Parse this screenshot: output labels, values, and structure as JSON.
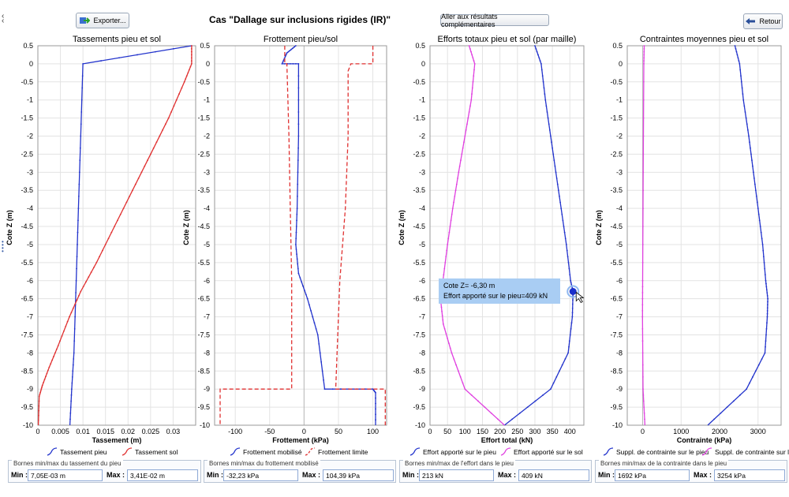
{
  "toolbar": {
    "export_label": "Exporter...",
    "title": "Cas \"Dallage sur inclusions rigides (IR)\"",
    "more_results_label": "Aller aux résultats complémentaires",
    "back_label": "Retour"
  },
  "tooltip": {
    "line1": "Cote Z= -6,30 m",
    "line2": "Effort apporté sur le pieu=409 kN"
  },
  "colors": {
    "blue": "#2233cc",
    "red": "#e03030",
    "magenta": "#e040e0",
    "grid": "#dcdcdc"
  },
  "chart_data": [
    {
      "type": "line",
      "title": "Tassements pieu et sol",
      "xlabel": "Tassement (m)",
      "ylabel": "Cote Z (m)",
      "xlim": [
        0,
        0.035
      ],
      "ylim": [
        -10,
        0.5
      ],
      "xticks": [
        0,
        0.005,
        0.01,
        0.015,
        0.02,
        0.025,
        0.03
      ],
      "xticklabels": [
        "0",
        "0.005",
        "0.01",
        "0.015",
        "0.02",
        "0.025",
        "0.03"
      ],
      "legend": [
        "Tassement pieu",
        "Tassement sol"
      ],
      "series": [
        {
          "name": "Tassement pieu",
          "color": "#2233cc",
          "dash": false,
          "points": [
            [
              0.0341,
              0.5
            ],
            [
              0.01,
              0
            ],
            [
              0.0095,
              -2
            ],
            [
              0.009,
              -4
            ],
            [
              0.0085,
              -6
            ],
            [
              0.008,
              -8
            ],
            [
              0.0075,
              -9
            ],
            [
              0.0071,
              -10
            ]
          ]
        },
        {
          "name": "Tassement sol",
          "color": "#e03030",
          "dash": false,
          "points": [
            [
              0.0341,
              0.5
            ],
            [
              0.0341,
              0
            ],
            [
              0.0325,
              -0.5
            ],
            [
              0.029,
              -1.5
            ],
            [
              0.025,
              -2.5
            ],
            [
              0.021,
              -3.5
            ],
            [
              0.017,
              -4.5
            ],
            [
              0.013,
              -5.5
            ],
            [
              0.0095,
              -6.3
            ],
            [
              0.007,
              -7
            ],
            [
              0.0045,
              -7.8
            ],
            [
              0.0025,
              -8.4
            ],
            [
              0.001,
              -8.9
            ],
            [
              0.0003,
              -9.2
            ],
            [
              0.0001,
              -10
            ]
          ]
        }
      ],
      "bounds": {
        "title": "Bornes min/max du tassement du pieu",
        "min_label": "Min :",
        "min": "7,05E-03 m",
        "max_label": "Max :",
        "max": "3,41E-02 m"
      }
    },
    {
      "type": "line",
      "title": "Frottement pieu/sol",
      "xlabel": "Frottement (kPa)",
      "ylabel": "Cote Z (m)",
      "xlim": [
        -130,
        120
      ],
      "ylim": [
        -10,
        0.5
      ],
      "xticks": [
        -100,
        -50,
        0,
        50,
        100
      ],
      "xticklabels": [
        "-100",
        "-50",
        "0",
        "50",
        "100"
      ],
      "legend": [
        "Frottement mobilisé",
        "Frottement limite"
      ],
      "series": [
        {
          "name": "Frottement mobilisé",
          "color": "#2233cc",
          "dash": false,
          "points": [
            [
              -12,
              0.5
            ],
            [
              -25,
              0.3
            ],
            [
              -32,
              0
            ],
            [
              -8,
              0
            ],
            [
              -8,
              -2
            ],
            [
              -10,
              -4
            ],
            [
              -12,
              -5
            ],
            [
              -8,
              -5.8
            ],
            [
              5,
              -6.5
            ],
            [
              20,
              -7.5
            ],
            [
              30,
              -9
            ],
            [
              100,
              -9
            ],
            [
              104,
              -9.1
            ],
            [
              104,
              -10
            ]
          ]
        },
        {
          "name": "Frottement limite",
          "color": "#e03030",
          "dash": true,
          "points": [
            [
              -28,
              0.5
            ],
            [
              -28,
              0
            ],
            [
              -25,
              0
            ],
            [
              -22,
              -2
            ],
            [
              -20,
              -4
            ],
            [
              -18,
              -6
            ],
            [
              -18,
              -9
            ],
            [
              -122,
              -9
            ],
            [
              -122,
              -10
            ]
          ]
        },
        {
          "name": "Frottement limite (+)",
          "color": "#e03030",
          "dash": true,
          "points": [
            [
              100,
              0.5
            ],
            [
              100,
              0
            ],
            [
              70,
              0
            ],
            [
              68,
              0
            ],
            [
              64,
              -0.2
            ],
            [
              64,
              -2
            ],
            [
              60,
              -4
            ],
            [
              52,
              -6
            ],
            [
              48,
              -8
            ],
            [
              46,
              -9
            ],
            [
              118,
              -9
            ],
            [
              118,
              -10
            ]
          ]
        }
      ],
      "bounds": {
        "title": "Bornes min/max du frottement mobilisé",
        "min_label": "Min :",
        "min": "-32,23 kPa",
        "max_label": "Max :",
        "max": "104,39 kPa"
      }
    },
    {
      "type": "line",
      "title": "Efforts totaux pieu et sol (par maille)",
      "xlabel": "Effort total (kN)",
      "ylabel": "Cote Z (m)",
      "xlim": [
        0,
        440
      ],
      "ylim": [
        -10,
        0.5
      ],
      "xticks": [
        0,
        50,
        100,
        150,
        200,
        250,
        300,
        350,
        400
      ],
      "xticklabels": [
        "0",
        "50",
        "100",
        "150",
        "200",
        "250",
        "300",
        "350",
        "400"
      ],
      "legend": [
        "Effort apporté sur le pieu",
        "Effort apporté sur le sol"
      ],
      "series": [
        {
          "name": "Effort apporté sur le pieu",
          "color": "#2233cc",
          "dash": false,
          "points": [
            [
              300,
              0.5
            ],
            [
              318,
              0
            ],
            [
              330,
              -1
            ],
            [
              345,
              -2
            ],
            [
              360,
              -3
            ],
            [
              375,
              -4
            ],
            [
              390,
              -5
            ],
            [
              402,
              -6
            ],
            [
              409,
              -6.3
            ],
            [
              407,
              -7
            ],
            [
              395,
              -8
            ],
            [
              345,
              -9
            ],
            [
              213,
              -10
            ]
          ]
        },
        {
          "name": "Effort apporté sur le sol",
          "color": "#e040e0",
          "dash": false,
          "points": [
            [
              112,
              0.5
            ],
            [
              128,
              0
            ],
            [
              118,
              -1
            ],
            [
              100,
              -2
            ],
            [
              82,
              -3
            ],
            [
              65,
              -4
            ],
            [
              50,
              -5
            ],
            [
              37,
              -6
            ],
            [
              30,
              -6.5
            ],
            [
              38,
              -7.2
            ],
            [
              62,
              -8
            ],
            [
              100,
              -9
            ],
            [
              213,
              -10
            ]
          ]
        }
      ],
      "bounds": {
        "title": "Bornes min/max de l'effort dans le pieu",
        "min_label": "Min :",
        "min": "213 kN",
        "max_label": "Max :",
        "max": "409 kN"
      }
    },
    {
      "type": "line",
      "title": "Contraintes moyennes pieu et sol",
      "xlabel": "Contrainte (kPa)",
      "ylabel": "Cote Z (m)",
      "xlim": [
        -400,
        3600
      ],
      "ylim": [
        -10,
        0.5
      ],
      "xticks": [
        0,
        1000,
        2000,
        3000
      ],
      "xticklabels": [
        "0",
        "1000",
        "2000",
        "3000"
      ],
      "legend": [
        "Suppl. de contrainte sur le pieu",
        "Suppl. de contrainte sur le sol"
      ],
      "series": [
        {
          "name": "Suppl. de contrainte sur le pieu",
          "color": "#2233cc",
          "dash": false,
          "points": [
            [
              2400,
              0.5
            ],
            [
              2520,
              0
            ],
            [
              2620,
              -1
            ],
            [
              2760,
              -2
            ],
            [
              2880,
              -3
            ],
            [
              3000,
              -4
            ],
            [
              3120,
              -5
            ],
            [
              3200,
              -6
            ],
            [
              3254,
              -6.5
            ],
            [
              3240,
              -7
            ],
            [
              3180,
              -8
            ],
            [
              2700,
              -9
            ],
            [
              1692,
              -10
            ]
          ]
        },
        {
          "name": "Suppl. de contrainte sur le sol",
          "color": "#e040e0",
          "dash": false,
          "points": [
            [
              40,
              0.5
            ],
            [
              30,
              0
            ],
            [
              15,
              -3
            ],
            [
              0,
              -6
            ],
            [
              -5,
              -7
            ],
            [
              10,
              -9
            ],
            [
              60,
              -10
            ]
          ]
        }
      ],
      "bounds": {
        "title": "Bornes min/max de la contrainte dans le pieu",
        "min_label": "Min :",
        "min": "1692 kPa",
        "max_label": "Max :",
        "max": "3254 kPa"
      }
    }
  ]
}
